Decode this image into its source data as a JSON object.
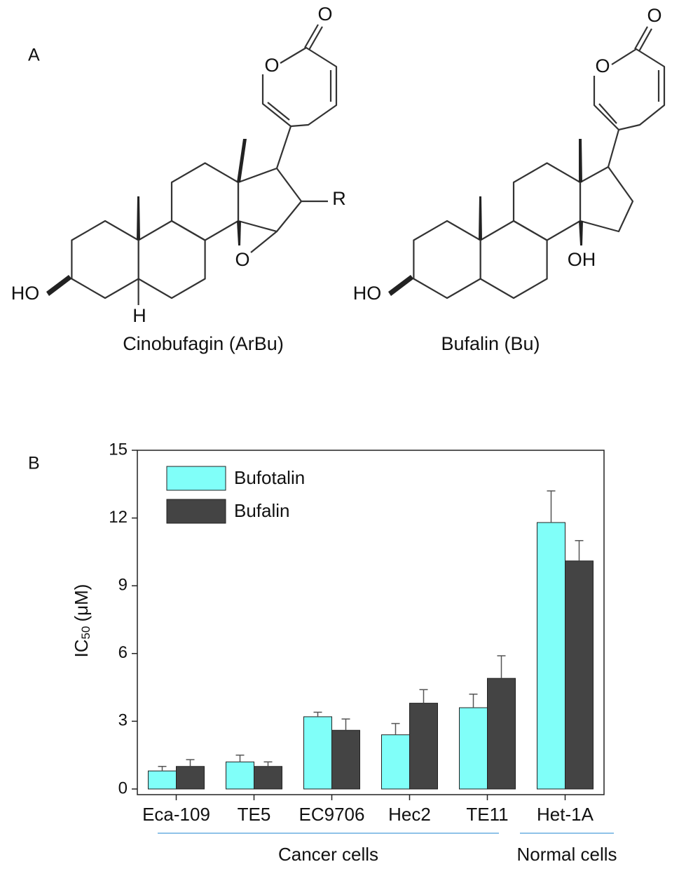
{
  "panel_a": {
    "label": "A",
    "structures": [
      {
        "name": "Cinobufagin (ArBu)",
        "atoms": [
          "O",
          "O",
          "R",
          "O",
          "HO",
          "H"
        ]
      },
      {
        "name": "Bufalin (Bu)",
        "atoms": [
          "O",
          "O",
          "OH",
          "HO"
        ]
      }
    ]
  },
  "chart_data": {
    "type": "bar",
    "panel_label": "B",
    "y_label": {
      "main": "IC",
      "sub": "50",
      "unit": "(μM)"
    },
    "categories": [
      "Eca-109",
      "TE5",
      "EC9706",
      "Hec2",
      "TE11",
      "Het-1A"
    ],
    "series": [
      {
        "name": "Bufotalin",
        "color": "#80fff9",
        "values": [
          0.8,
          1.2,
          3.2,
          2.4,
          3.6,
          11.8
        ],
        "errors": [
          0.2,
          0.3,
          0.2,
          0.5,
          0.6,
          1.4
        ]
      },
      {
        "name": "Bufalin",
        "color": "#444444",
        "values": [
          1.0,
          1.0,
          2.6,
          3.8,
          4.9,
          10.1
        ],
        "errors": [
          0.3,
          0.2,
          0.5,
          0.6,
          1.0,
          0.9
        ]
      }
    ],
    "groups": [
      "Cancer cells",
      "Normal cells"
    ],
    "ylim": [
      -0.25,
      15
    ],
    "yticks": [
      0,
      3,
      6,
      9,
      12,
      15
    ],
    "grid": false,
    "legend": "top-left"
  }
}
